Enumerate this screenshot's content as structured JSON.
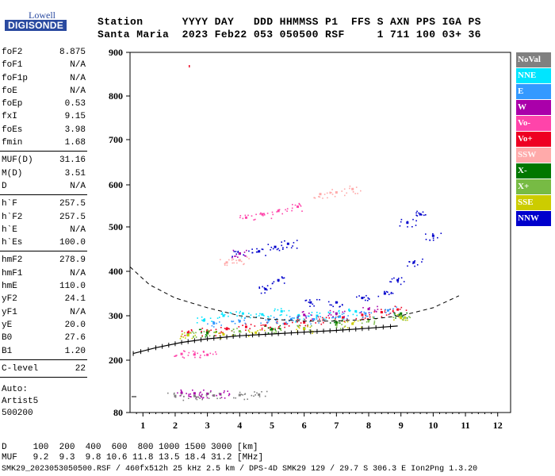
{
  "logo": {
    "line1": "Lowell",
    "line2": "DIGISONDE"
  },
  "header": {
    "line1": "Station      YYYY DAY   DDD HHMMSS P1  FFS S AXN PPS IGA PS",
    "line2": "Santa Maria  2023 Feb22 053 050500 RSF     1 711 100 03+ 36"
  },
  "params_groups": [
    [
      [
        "foF2",
        "8.875"
      ],
      [
        "foF1",
        "N/A"
      ],
      [
        "foF1p",
        "N/A"
      ],
      [
        "foE",
        "N/A"
      ],
      [
        "foEp",
        "0.53"
      ],
      [
        "fxI",
        "9.15"
      ],
      [
        "foEs",
        "3.98"
      ],
      [
        "fmin",
        "1.68"
      ]
    ],
    [
      [
        "MUF(D)",
        "31.16"
      ],
      [
        "M(D)",
        "3.51"
      ],
      [
        "D",
        "N/A"
      ]
    ],
    [
      [
        "h`F",
        "257.5"
      ],
      [
        "h`F2",
        "257.5"
      ],
      [
        "h`E",
        "N/A"
      ],
      [
        "h`Es",
        "100.0"
      ]
    ],
    [
      [
        "hmF2",
        "278.9"
      ],
      [
        "hmF1",
        "N/A"
      ],
      [
        "hmE",
        "110.0"
      ],
      [
        "yF2",
        "24.1"
      ],
      [
        "yF1",
        "N/A"
      ],
      [
        "yE",
        "20.0"
      ],
      [
        "B0",
        "27.6"
      ],
      [
        "B1",
        "1.20"
      ]
    ],
    [
      [
        "C-level",
        "22"
      ]
    ]
  ],
  "auto_block": [
    "Auto:",
    "Artist5",
    "500200"
  ],
  "legend": [
    {
      "label": "NoVal",
      "color": "#808080"
    },
    {
      "label": "NNE",
      "color": "#00e5ff"
    },
    {
      "label": "E",
      "color": "#3399ff"
    },
    {
      "label": "W",
      "color": "#aa00aa"
    },
    {
      "label": "Vo-",
      "color": "#ff44aa"
    },
    {
      "label": "Vo+",
      "color": "#ee0022"
    },
    {
      "label": "SSW",
      "color": "#ffaaaa"
    },
    {
      "label": "X-",
      "color": "#007700"
    },
    {
      "label": "X+",
      "color": "#77bb44"
    },
    {
      "label": "SSE",
      "color": "#cccc00"
    },
    {
      "label": "NNW",
      "color": "#0000cc"
    }
  ],
  "bottom": {
    "line1": "D     100  200  400  600  800 1000 1500 3000 [km]",
    "line2": "MUF   9.2  9.3  9.8 10.6 11.8 13.5 18.4 31.2 [MHz]",
    "line3": "SMK29_2023053050500.RSF / 460fx512h 25 kHz 2.5 km / DPS-4D SMK29 129 / 29.7 S 306.3 E Ion2Png 1.3.20"
  },
  "chart_data": {
    "type": "scatter",
    "title": "",
    "xlabel": "",
    "ylabel": "",
    "xlim": [
      0.6,
      12.4
    ],
    "ylim": [
      80,
      900
    ],
    "xticks": [
      1,
      2,
      3,
      4,
      5,
      6,
      7,
      8,
      9,
      10,
      11,
      12
    ],
    "yticks": [
      80,
      200,
      300,
      400,
      500,
      600,
      700,
      800,
      900
    ],
    "scale_note": "y axis nonlinear (upper region compressed)",
    "series": [
      {
        "name": "Vo+",
        "color": "#ee0022",
        "points": [
          [
            2.4,
            262
          ],
          [
            3,
            265
          ],
          [
            3.6,
            270
          ],
          [
            4.2,
            275
          ],
          [
            4.8,
            278
          ],
          [
            5.4,
            282
          ],
          [
            6,
            285
          ],
          [
            6.6,
            290
          ],
          [
            7.2,
            296
          ],
          [
            7.8,
            302
          ],
          [
            8.4,
            308
          ],
          [
            8.9,
            314
          ]
        ]
      },
      {
        "name": "NNE",
        "color": "#00e5ff",
        "points": [
          [
            2.9,
            290
          ],
          [
            3.5,
            300
          ],
          [
            4.1,
            305
          ],
          [
            4.7,
            303
          ],
          [
            5.3,
            310
          ],
          [
            5.8,
            296
          ],
          [
            6.4,
            300
          ],
          [
            7,
            305
          ],
          [
            7.6,
            310
          ]
        ]
      },
      {
        "name": "E",
        "color": "#3399ff",
        "points": [
          [
            3.2,
            283
          ],
          [
            4,
            288
          ],
          [
            4.9,
            290
          ],
          [
            5.6,
            292
          ],
          [
            6.3,
            292
          ],
          [
            7.1,
            298
          ],
          [
            7.9,
            305
          ],
          [
            8.6,
            312
          ]
        ]
      },
      {
        "name": "NNW",
        "color": "#0000cc",
        "points": [
          [
            4,
            440
          ],
          [
            4.6,
            445
          ],
          [
            5.1,
            455
          ],
          [
            5.5,
            462
          ],
          [
            5.2,
            380
          ],
          [
            4.8,
            360
          ],
          [
            6.2,
            330
          ],
          [
            7,
            330
          ],
          [
            7.8,
            340
          ],
          [
            8.5,
            350
          ],
          [
            9.2,
            510
          ],
          [
            9.6,
            530
          ],
          [
            10,
            480
          ],
          [
            9.4,
            420
          ],
          [
            8.9,
            380
          ]
        ]
      },
      {
        "name": "W",
        "color": "#aa00aa",
        "points": [
          [
            2.2,
            125
          ],
          [
            2.6,
            124
          ],
          [
            3,
            123
          ],
          [
            3.4,
            122
          ],
          [
            4,
            440
          ],
          [
            6,
            302
          ],
          [
            7,
            305
          ],
          [
            8,
            315
          ]
        ]
      },
      {
        "name": "X+",
        "color": "#77bb44",
        "points": [
          [
            2.4,
            258
          ],
          [
            3,
            260
          ],
          [
            4,
            265
          ],
          [
            5,
            268
          ],
          [
            6,
            272
          ],
          [
            7,
            280
          ],
          [
            8,
            290
          ],
          [
            9,
            300
          ]
        ]
      },
      {
        "name": "SSE",
        "color": "#cccc00",
        "points": [
          [
            2.4,
            256
          ],
          [
            3.5,
            258
          ],
          [
            4.5,
            262
          ],
          [
            6,
            270
          ],
          [
            7.5,
            282
          ],
          [
            9,
            295
          ]
        ]
      },
      {
        "name": "X-",
        "color": "#007700",
        "points": [
          [
            3,
            262
          ],
          [
            5,
            270
          ],
          [
            7,
            285
          ],
          [
            9,
            305
          ]
        ]
      },
      {
        "name": "Vo-",
        "color": "#ff44aa",
        "points": [
          [
            4.2,
            522
          ],
          [
            4.7,
            530
          ],
          [
            5.2,
            538
          ],
          [
            5.8,
            548
          ],
          [
            2.2,
            214
          ],
          [
            2.6,
            213
          ],
          [
            3,
            212
          ]
        ]
      },
      {
        "name": "NoVal",
        "color": "#808080",
        "points": [
          [
            2,
            118
          ],
          [
            2.6,
            118
          ],
          [
            3.2,
            119
          ],
          [
            4,
            120
          ],
          [
            4.6,
            121
          ]
        ]
      },
      {
        "name": "SSW",
        "color": "#ffaaaa",
        "points": [
          [
            3.6,
            420
          ],
          [
            4,
            425
          ],
          [
            6.5,
            578
          ],
          [
            7,
            582
          ],
          [
            7.5,
            590
          ]
        ]
      },
      {
        "name": "",
        "color": "#000000",
        "style": "dashed",
        "points": [
          [
            0.6,
            410
          ],
          [
            1.2,
            370
          ],
          [
            2,
            340
          ],
          [
            3,
            318
          ],
          [
            4,
            300
          ],
          [
            5,
            292
          ],
          [
            6,
            288
          ],
          [
            7,
            288
          ],
          [
            8,
            292
          ],
          [
            9,
            300
          ],
          [
            10,
            318
          ],
          [
            10.8,
            345
          ]
        ]
      },
      {
        "name": "",
        "color": "#000000",
        "style": "ticked",
        "points": [
          [
            0.7,
            215
          ],
          [
            1.4,
            228
          ],
          [
            2.2,
            240
          ],
          [
            3,
            248
          ],
          [
            4,
            255
          ],
          [
            5,
            259
          ],
          [
            6,
            263
          ],
          [
            7,
            267
          ],
          [
            8,
            272
          ],
          [
            8.9,
            277
          ]
        ]
      }
    ]
  }
}
